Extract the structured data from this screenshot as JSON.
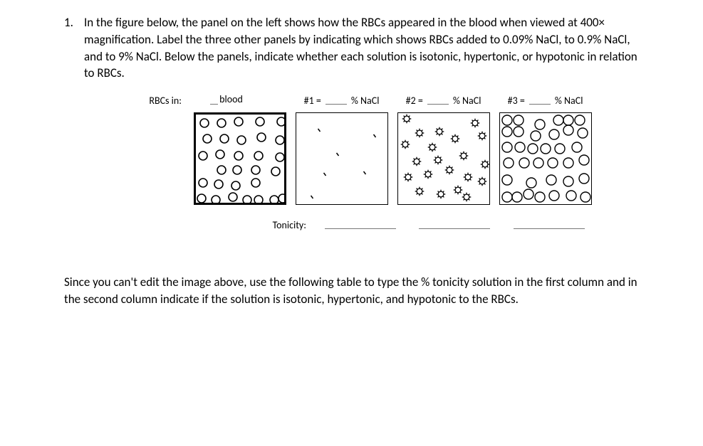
{
  "question": {
    "number": "1.",
    "text": "In the figure below, the panel on the left shows how the RBCs appeared in the blood when viewed at 400× magnification. Label the three other panels by indicating which shows RBCs added to 0.09% NaCl, to 0.9% NaCl, and to 9% NaCl. Below the panels, indicate whether each solution is isotonic, hypertonic, or hypotonic in relation to RBCs."
  },
  "header": {
    "rowLabel": "RBCs in:",
    "col0": "blood",
    "col1a": "#1 =",
    "col1b": "% NaCl",
    "col2a": "#2 =",
    "col2b": "% NaCl",
    "col3a": "#3 =",
    "col3b": "% NaCl"
  },
  "tonicity": {
    "label": "Tonicity:"
  },
  "para2": "Since you can't edit the image above, use the following table to type the % tonicity solution in the first column and in the second column indicate if the solution is isotonic, hypertonic, and hypotonic to the RBCs.",
  "panels": {
    "width": 130,
    "height": 130,
    "stroke": "#000000",
    "cell_r": 6,
    "blood": {
      "border_width": 3,
      "cells": [
        [
          12,
          12
        ],
        [
          36,
          12
        ],
        [
          60,
          10
        ],
        [
          90,
          10
        ],
        [
          120,
          10
        ],
        [
          16,
          34
        ],
        [
          40,
          34
        ],
        [
          64,
          36
        ],
        [
          92,
          32
        ],
        [
          118,
          36
        ],
        [
          10,
          58
        ],
        [
          34,
          56
        ],
        [
          60,
          58
        ],
        [
          88,
          58
        ],
        [
          118,
          60
        ],
        [
          36,
          78
        ],
        [
          58,
          78
        ],
        [
          84,
          78
        ],
        [
          112,
          80
        ],
        [
          10,
          96
        ],
        [
          32,
          98
        ],
        [
          56,
          100
        ],
        [
          84,
          96
        ],
        [
          8,
          118
        ],
        [
          28,
          120
        ],
        [
          52,
          116
        ],
        [
          72,
          120
        ],
        [
          88,
          120
        ],
        [
          110,
          120
        ],
        [
          122,
          118
        ]
      ]
    },
    "p1": {
      "border_width": 1,
      "specks": [
        [
          32,
          24
        ],
        [
          110,
          32
        ],
        [
          58,
          58
        ],
        [
          40,
          86
        ],
        [
          96,
          84
        ],
        [
          22,
          118
        ]
      ]
    },
    "p2": {
      "border_width": 1,
      "cells": [
        [
          12,
          8
        ],
        [
          58,
          26
        ],
        [
          108,
          14
        ],
        [
          30,
          28
        ],
        [
          80,
          36
        ],
        [
          118,
          32
        ],
        [
          10,
          44
        ],
        [
          48,
          48
        ],
        [
          26,
          68
        ],
        [
          56,
          66
        ],
        [
          92,
          60
        ],
        [
          122,
          72
        ],
        [
          14,
          90
        ],
        [
          42,
          86
        ],
        [
          72,
          80
        ],
        [
          98,
          90
        ],
        [
          30,
          110
        ],
        [
          60,
          114
        ],
        [
          84,
          108
        ],
        [
          96,
          118
        ],
        [
          118,
          96
        ]
      ]
    },
    "p3": {
      "border_width": 1,
      "cells": [
        [
          10,
          10
        ],
        [
          26,
          10
        ],
        [
          56,
          16
        ],
        [
          82,
          10
        ],
        [
          96,
          10
        ],
        [
          112,
          10
        ],
        [
          10,
          26
        ],
        [
          26,
          26
        ],
        [
          50,
          32
        ],
        [
          76,
          30
        ],
        [
          96,
          24
        ],
        [
          116,
          28
        ],
        [
          10,
          48
        ],
        [
          28,
          48
        ],
        [
          46,
          50
        ],
        [
          64,
          50
        ],
        [
          84,
          50
        ],
        [
          108,
          48
        ],
        [
          12,
          70
        ],
        [
          34,
          70
        ],
        [
          54,
          70
        ],
        [
          74,
          70
        ],
        [
          96,
          70
        ],
        [
          118,
          66
        ],
        [
          10,
          94
        ],
        [
          44,
          98
        ],
        [
          72,
          94
        ],
        [
          96,
          96
        ],
        [
          118,
          92
        ],
        [
          10,
          118
        ],
        [
          24,
          118
        ],
        [
          40,
          114
        ],
        [
          56,
          118
        ],
        [
          76,
          116
        ],
        [
          100,
          116
        ],
        [
          120,
          118
        ]
      ],
      "r": 7
    }
  }
}
